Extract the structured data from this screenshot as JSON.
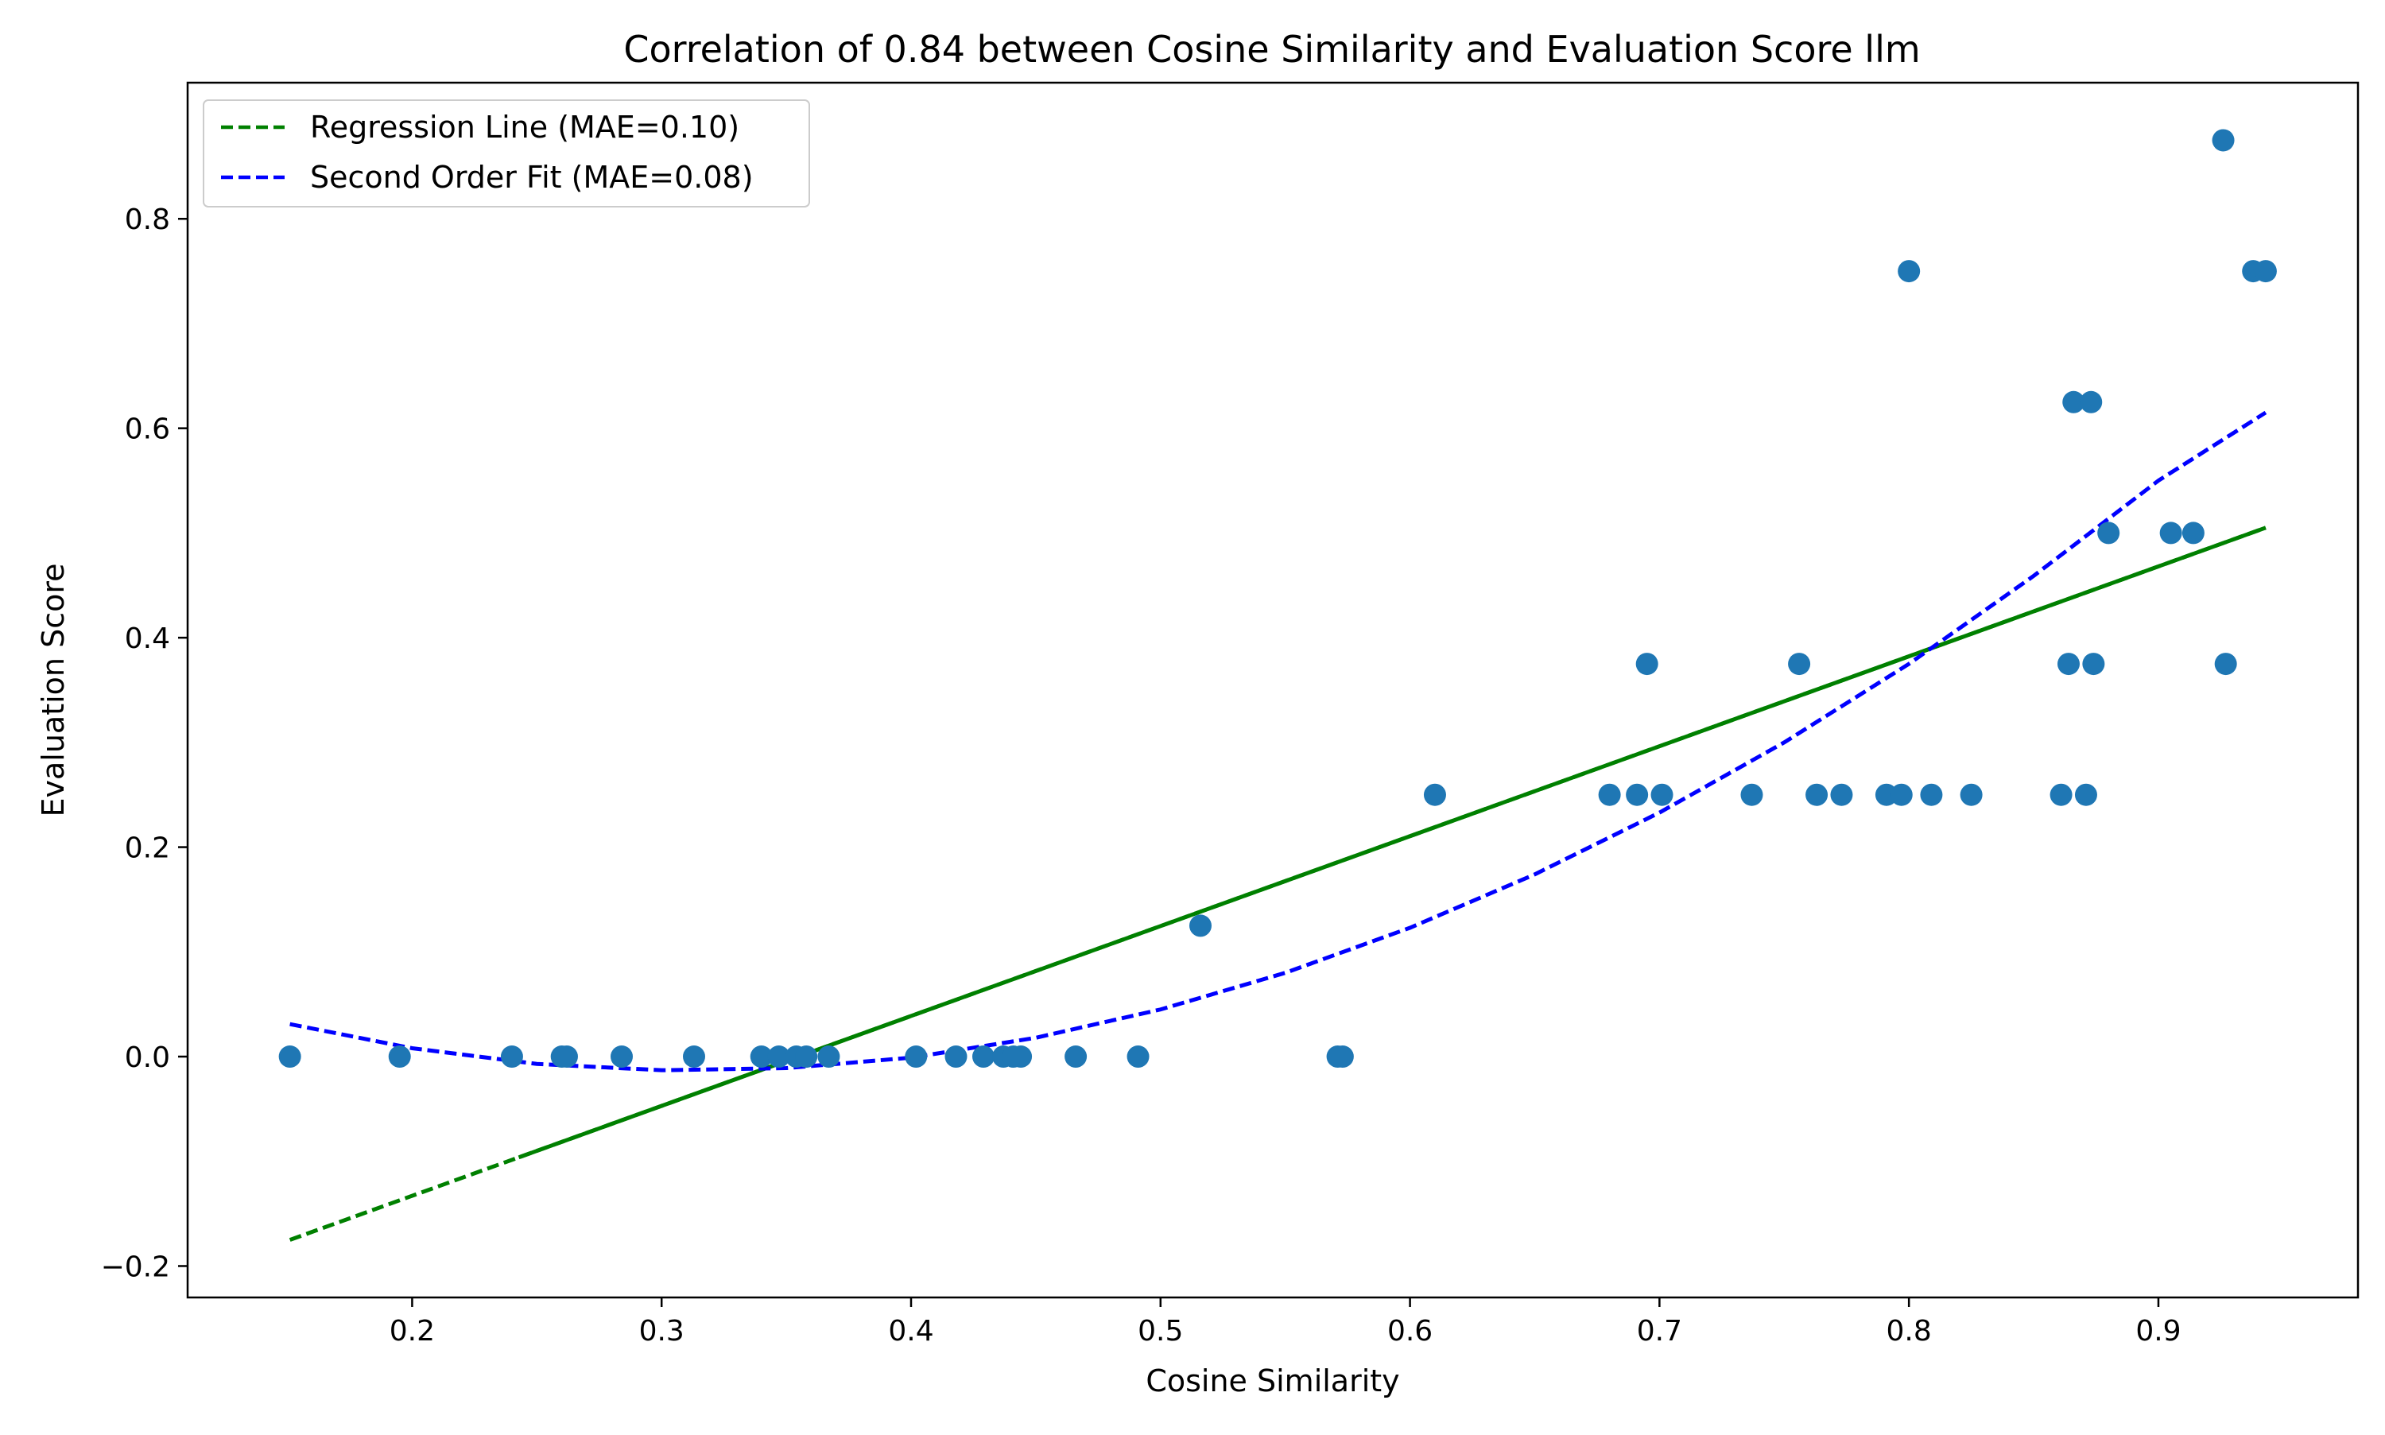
{
  "chart_data": {
    "type": "scatter",
    "title": "Correlation of 0.84 between Cosine Similarity and Evaluation Score llm",
    "xlabel": "Cosine Similarity",
    "ylabel": "Evaluation Score",
    "xlim": [
      0.11,
      0.98
    ],
    "ylim": [
      -0.23,
      0.93
    ],
    "xticks": [
      0.2,
      0.3,
      0.4,
      0.5,
      0.6,
      0.7,
      0.8,
      0.9
    ],
    "yticks": [
      -0.2,
      0.0,
      0.2,
      0.4,
      0.6,
      0.8
    ],
    "ytick_labels": [
      "−0.2",
      "0.0",
      "0.2",
      "0.4",
      "0.6",
      "0.8"
    ],
    "grid": false,
    "legend_position": "upper-left",
    "colors": {
      "points": "#1f77b4",
      "regression": "#008000",
      "second_order": "#0000ff"
    },
    "series": [
      {
        "name": "",
        "kind": "points",
        "x": [
          0.151,
          0.195,
          0.24,
          0.26,
          0.262,
          0.284,
          0.313,
          0.34,
          0.347,
          0.354,
          0.358,
          0.367,
          0.402,
          0.418,
          0.429,
          0.437,
          0.441,
          0.444,
          0.466,
          0.491,
          0.516,
          0.571,
          0.573,
          0.61,
          0.68,
          0.691,
          0.695,
          0.701,
          0.737,
          0.756,
          0.763,
          0.773,
          0.791,
          0.797,
          0.8,
          0.809,
          0.825,
          0.861,
          0.864,
          0.866,
          0.871,
          0.873,
          0.874,
          0.88,
          0.905,
          0.914,
          0.926,
          0.927,
          0.938,
          0.943
        ],
        "y": [
          0.0,
          0.0,
          0.0,
          0.0,
          0.0,
          0.0,
          0.0,
          0.0,
          0.0,
          0.0,
          0.0,
          0.0,
          0.0,
          0.0,
          0.0,
          0.0,
          0.0,
          0.0,
          0.0,
          0.0,
          0.125,
          0.0,
          0.0,
          0.25,
          0.25,
          0.25,
          0.375,
          0.25,
          0.25,
          0.375,
          0.25,
          0.25,
          0.25,
          0.25,
          0.75,
          0.25,
          0.25,
          0.25,
          0.375,
          0.625,
          0.25,
          0.625,
          0.375,
          0.5,
          0.5,
          0.5,
          0.875,
          0.375,
          0.75,
          0.75
        ]
      },
      {
        "name": "Regression Line (MAE=0.10)",
        "kind": "line",
        "style": "dashed",
        "x": [
          0.151,
          0.943
        ],
        "y": [
          -0.175,
          0.505
        ]
      },
      {
        "name": "Second Order Fit (MAE=0.08)",
        "kind": "line",
        "style": "dashed",
        "x": [
          0.151,
          0.2,
          0.25,
          0.3,
          0.35,
          0.4,
          0.45,
          0.5,
          0.55,
          0.6,
          0.65,
          0.7,
          0.75,
          0.8,
          0.85,
          0.9,
          0.943
        ],
        "y": [
          0.031,
          0.008,
          -0.007,
          -0.013,
          -0.011,
          -0.001,
          0.018,
          0.045,
          0.08,
          0.123,
          0.174,
          0.233,
          0.3,
          0.375,
          0.459,
          0.55,
          0.615
        ]
      }
    ]
  }
}
